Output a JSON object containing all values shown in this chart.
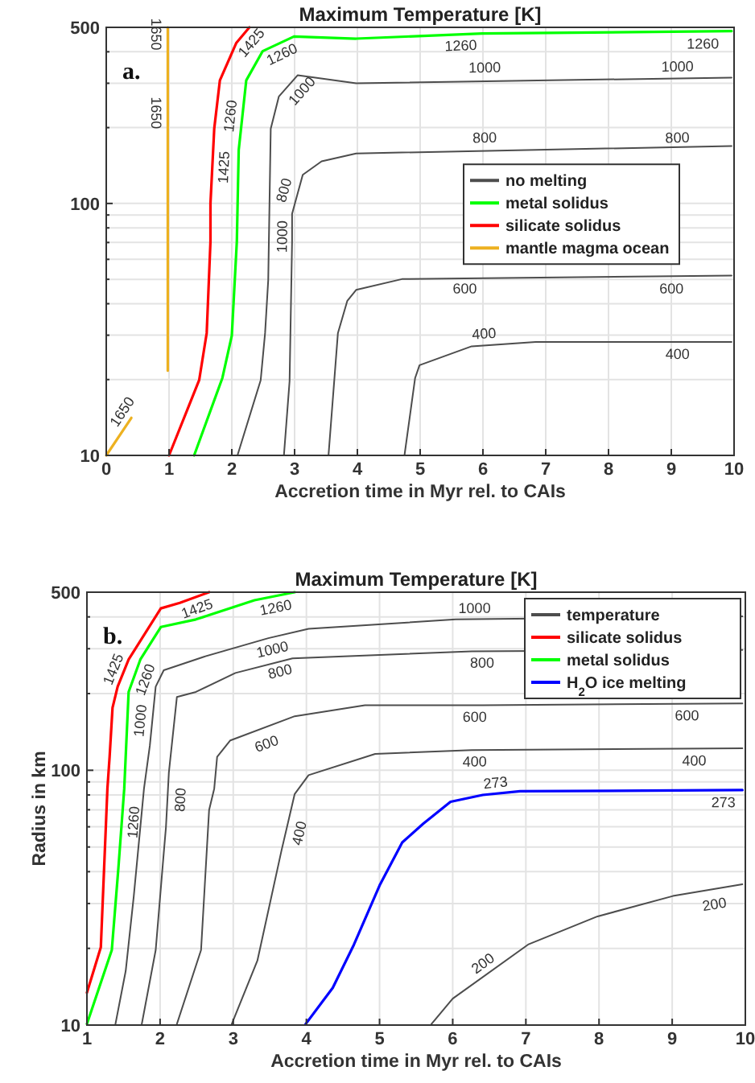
{
  "chart_data": [
    {
      "type": "line",
      "title": "Maximum Temperature [K]",
      "xlabel": "Accretion time in Myr rel. to CAIs",
      "log": "y",
      "grid": true,
      "legend": "right",
      "xlim": [
        0,
        10
      ],
      "ylim": [
        10,
        500
      ],
      "xticks": [
        0,
        1,
        2,
        3,
        4,
        5,
        6,
        7,
        8,
        9,
        10
      ],
      "yticks": [
        10,
        {
          "value": 20,
          "label": null
        },
        {
          "value": 30,
          "label": null
        },
        {
          "value": 40,
          "label": null
        },
        {
          "value": 50,
          "label": null
        },
        {
          "value": 60,
          "label": null
        },
        {
          "value": 70,
          "label": null
        },
        {
          "value": 80,
          "label": null
        },
        {
          "value": 90,
          "label": null
        },
        100,
        {
          "value": 200,
          "label": null
        },
        {
          "value": 300,
          "label": null
        },
        {
          "value": 400,
          "label": null
        },
        500
      ],
      "series": [
        {
          "name": "no melting",
          "color": "#4d4d4d",
          "x": [
            2.09,
            2.46,
            2.53,
            2.58,
            2.62,
            2.75,
            3.05,
            3.98,
            9.96
          ],
          "values": [
            10,
            19.9,
            30.6,
            49.6,
            198,
            266,
            323,
            300,
            316
          ]
        },
        {
          "color": "#4d4d4d",
          "x": [
            2.83,
            2.92,
            2.96,
            2.96,
            3.13,
            3.43,
            3.98,
            9.96
          ],
          "values": [
            10,
            19.7,
            70.6,
            91,
            130,
            147,
            158,
            169
          ]
        },
        {
          "color": "#4d4d4d",
          "x": [
            3.54,
            3.69,
            3.84,
            3.98,
            4.71,
            9.96
          ],
          "values": [
            10,
            30.6,
            41.1,
            45.4,
            50.1,
            51.7
          ]
        },
        {
          "color": "#4d4d4d",
          "x": [
            4.75,
            4.92,
            4.99,
            5.82,
            6.84,
            9.96
          ],
          "values": [
            10,
            20.3,
            22.8,
            27.1,
            28.2,
            28.2
          ]
        },
        {
          "name": "metal solidus",
          "color": "#00ff00",
          "x": [
            1.4,
            1.85,
            2.0,
            2.08,
            2.11,
            2.23,
            2.49,
            2.99,
            3.98,
            5.99,
            9.96
          ],
          "values": [
            10,
            20.3,
            29.9,
            70.6,
            163,
            308,
            402,
            460,
            451,
            473,
            483
          ]
        },
        {
          "name": "silicate solidus",
          "color": "#ff0000",
          "x": [
            1.0,
            1.48,
            1.6,
            1.66,
            1.66,
            1.72,
            1.81,
            2.07,
            2.28
          ],
          "values": [
            10,
            19.9,
            30.6,
            70.6,
            100,
            198,
            308,
            433,
            500
          ]
        },
        {
          "name": "mantle magma ocean",
          "color": "#edb120",
          "x": [
            0.98,
            0.98
          ],
          "values": [
            21.7,
            500
          ]
        },
        {
          "color": "#edb120",
          "x": [
            0,
            0.4
          ],
          "values": [
            10,
            14.1
          ]
        }
      ],
      "annotations": [
        "a.",
        {
          "text": "1650",
          "x": 0.4,
          "y": 14.1
        },
        {
          "text": "1650",
          "x": 0.98,
          "y": 229
        },
        {
          "text": "1650",
          "x": 0.98,
          "y": 470
        },
        {
          "text": "1425",
          "x": 1.69,
          "y": 140
        },
        {
          "text": "1425",
          "x": 2.17,
          "y": 465
        },
        {
          "text": "1260",
          "x": 2.15,
          "y": 220
        },
        {
          "text": "1260",
          "x": 2.72,
          "y": 430
        },
        {
          "text": "1260",
          "x": 5.64,
          "y": 470
        },
        {
          "text": "1260",
          "x": 9.5,
          "y": 478
        },
        {
          "text": "1000",
          "x": 2.62,
          "y": 74
        },
        {
          "text": "1000",
          "x": 2.98,
          "y": 300
        },
        {
          "text": "1000",
          "x": 6.03,
          "y": 313
        },
        {
          "text": "1000",
          "x": 9.1,
          "y": 316
        },
        {
          "text": "800",
          "x": 3.0,
          "y": 110
        },
        {
          "text": "800",
          "x": 6.03,
          "y": 165
        },
        {
          "text": "800",
          "x": 9.1,
          "y": 165
        },
        {
          "text": "600",
          "x": 5.71,
          "y": 51
        },
        {
          "text": "600",
          "x": 9.0,
          "y": 51
        },
        {
          "text": "400",
          "x": 6.03,
          "y": 27.5
        },
        {
          "text": "400",
          "x": 9.1,
          "y": 28
        }
      ]
    },
    {
      "type": "line",
      "title": "Maximum Temperature [K]",
      "xlabel": "Accretion time in Myr rel. to CAIs",
      "ylabel": "Radius in km",
      "log": "y",
      "grid": true,
      "legend": "top right",
      "xlim": [
        1,
        10
      ],
      "ylim": [
        10,
        500
      ],
      "xticks": [
        1,
        2,
        3,
        4,
        5,
        6,
        7,
        8,
        9,
        10
      ],
      "yticks": [
        10,
        {
          "value": 20,
          "label": null
        },
        {
          "value": 30,
          "label": null
        },
        {
          "value": 40,
          "label": null
        },
        {
          "value": 50,
          "label": null
        },
        {
          "value": 60,
          "label": null
        },
        {
          "value": 70,
          "label": null
        },
        {
          "value": 80,
          "label": null
        },
        {
          "value": 90,
          "label": null
        },
        100,
        {
          "value": 200,
          "label": null
        },
        {
          "value": 300,
          "label": null
        },
        {
          "value": 400,
          "label": null
        },
        500
      ],
      "series": [
        {
          "name": "temperature",
          "color": "#4d4d4d",
          "x": [
            1.39,
            1.53,
            1.64,
            1.78,
            1.86,
            1.94,
            2.05,
            2.6,
            3.48,
            4.03,
            6.04,
            9.96
          ],
          "values": [
            10.1,
            16.3,
            32,
            84.7,
            125,
            213,
            247,
            279,
            330,
            359,
            391,
            402
          ]
        },
        {
          "color": "#4d4d4d",
          "x": [
            1.75,
            1.94,
            2.05,
            2.08,
            2.12,
            2.23,
            2.49,
            3.03,
            3.81,
            6.26,
            9.96
          ],
          "values": [
            10.1,
            19.7,
            47.3,
            59.7,
            98,
            194,
            203,
            241,
            275,
            293,
            297
          ]
        },
        {
          "color": "#4d4d4d",
          "x": [
            2.23,
            2.56,
            2.67,
            2.74,
            2.78,
            2.96,
            3.84,
            4.8,
            6.41,
            9.96
          ],
          "values": [
            10.1,
            19.7,
            69.8,
            84.7,
            113,
            131,
            163,
            180,
            180,
            183
          ]
        },
        {
          "color": "#4d4d4d",
          "x": [
            2.98,
            3.33,
            3.66,
            3.84,
            4.03,
            4.94,
            6.26,
            9.96
          ],
          "values": [
            10.1,
            17.9,
            48.5,
            80.7,
            95.7,
            116,
            120,
            122
          ]
        },
        {
          "color": "#4d4d4d",
          "x": [
            5.71,
            6.0,
            7.03,
            7.98,
            9.01,
            9.96
          ],
          "values": [
            10.1,
            12.7,
            20.7,
            26.7,
            32.1,
            35.7
          ]
        },
        {
          "name": "silicate solidus",
          "color": "#ff0000",
          "x": [
            1.0,
            1.19,
            1.28,
            1.31,
            1.35,
            1.42,
            1.57,
            2.01,
            2.27,
            2.67
          ],
          "values": [
            13.4,
            20.2,
            84.7,
            113,
            176,
            213,
            272,
            432,
            454,
            500
          ]
        },
        {
          "name": "metal solidus",
          "color": "#00ff00",
          "x": [
            1.0,
            1.34,
            1.43,
            1.51,
            1.57,
            1.73,
            2.01,
            2.49,
            3.29,
            3.84
          ],
          "values": [
            10.1,
            19.7,
            41.3,
            84.7,
            203,
            272,
            365,
            391,
            465,
            500
          ]
        },
        {
          "name": "H$_{2}$O ice melting",
          "color": "#0000ff",
          "x": [
            3.99,
            4.36,
            4.65,
            5.0,
            5.31,
            5.6,
            5.97,
            6.41,
            6.92,
            9.96
          ],
          "values": [
            10.1,
            14.0,
            20.7,
            35.3,
            52.1,
            61.8,
            75.2,
            80,
            82.7,
            83.6
          ]
        }
      ],
      "annotations": [
        "b.",
        {
          "text": "1425",
          "x": 1.5,
          "y": 240
        },
        {
          "text": "1425",
          "x": 2.45,
          "y": 475
        },
        {
          "text": "1260",
          "x": 1.48,
          "y": 63
        },
        {
          "text": "1260",
          "x": 1.65,
          "y": 235
        },
        {
          "text": "1260",
          "x": 3.55,
          "y": 482
        },
        {
          "text": "1000",
          "x": 1.88,
          "y": 155
        },
        {
          "text": "1000",
          "x": 3.5,
          "y": 330
        },
        {
          "text": "1000",
          "x": 6.3,
          "y": 392
        },
        {
          "text": "800",
          "x": 2.12,
          "y": 77
        },
        {
          "text": "800",
          "x": 3.6,
          "y": 270
        },
        {
          "text": "800",
          "x": 6.4,
          "y": 293
        },
        {
          "text": "600",
          "x": 3.4,
          "y": 140
        },
        {
          "text": "600",
          "x": 6.3,
          "y": 180
        },
        {
          "text": "600",
          "x": 9.2,
          "y": 182
        },
        {
          "text": "400",
          "x": 3.75,
          "y": 58
        },
        {
          "text": "400",
          "x": 6.3,
          "y": 120
        },
        {
          "text": "400",
          "x": 9.3,
          "y": 121
        },
        {
          "text": "273",
          "x": 6.6,
          "y": 81
        },
        {
          "text": "273",
          "x": 9.7,
          "y": 83
        },
        {
          "text": "200",
          "x": 6.5,
          "y": 16.1
        },
        {
          "text": "200",
          "x": 9.55,
          "y": 33
        }
      ]
    }
  ]
}
